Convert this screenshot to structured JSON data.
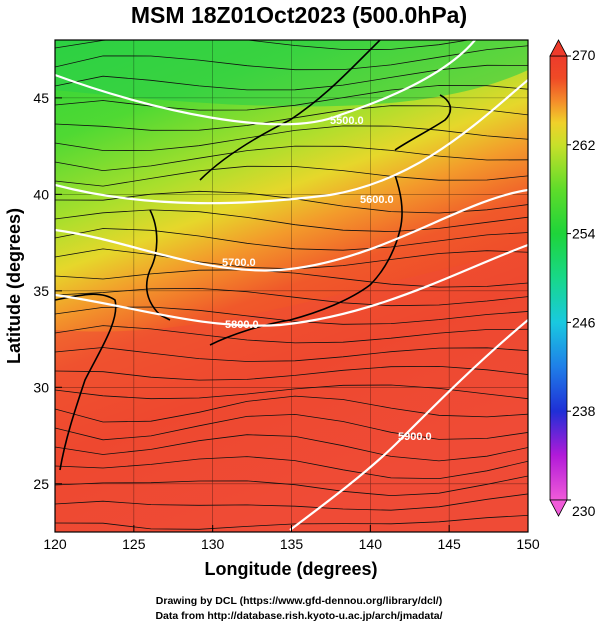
{
  "title": "MSM 18Z01Oct2023 (500.0hPa)",
  "x_axis": {
    "label": "Longitude (degrees)",
    "range": [
      120,
      150
    ],
    "ticks": [
      120,
      125,
      130,
      135,
      140,
      145,
      150
    ]
  },
  "y_axis": {
    "label": "Latitude  (degrees)",
    "range": [
      22.5,
      48
    ],
    "ticks": [
      25,
      30,
      35,
      40,
      45
    ]
  },
  "colorbar": {
    "min": 230,
    "max": 270,
    "ticks": [
      230,
      238,
      246,
      254,
      262,
      270
    ],
    "colors": {
      "230": "#f05bd9",
      "234": "#b21ad9",
      "238": "#1f2fd6",
      "242": "#1f7fe8",
      "246": "#19c9e0",
      "250": "#18d889",
      "254": "#1ed43a",
      "258": "#5fdc2a",
      "262": "#c8e02a",
      "264": "#f0d12a",
      "266": "#f48a2a",
      "268": "#ef4a26",
      "270": "#ee3b2b"
    }
  },
  "contours": {
    "labels": [
      "5500.0",
      "5600.0",
      "5700.0",
      "5800.0",
      "5900.0"
    ]
  },
  "credits": [
    "Drawing by DCL (https://www.gfd-dennou.org/library/dcl/)",
    "Data from http://database.rish.kyoto-u.ac.jp/arch/jmadata/"
  ]
}
